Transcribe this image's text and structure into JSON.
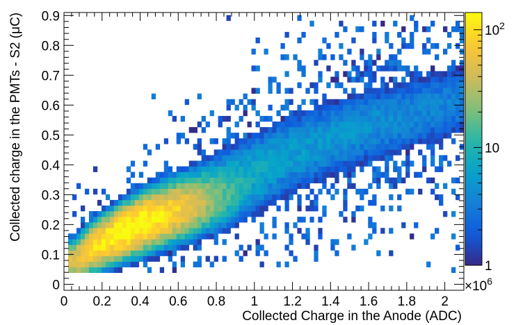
{
  "chart_data": {
    "type": "heatmap",
    "title": "",
    "xlabel": "Collected Charge in the Anode (ADC)",
    "ylabel": "Collected charge in the PMTs - S2 (μC)",
    "x_multiplier_label": "×10",
    "x_multiplier_exponent": "6",
    "xlim": [
      0,
      2.1
    ],
    "ylim": [
      -0.02,
      0.91
    ],
    "x_ticks": [
      0,
      0.2,
      0.4,
      0.6,
      0.8,
      1.0,
      1.2,
      1.4,
      1.6,
      1.8,
      2.0
    ],
    "x_tick_labels": [
      "0",
      "0.2",
      "0.4",
      "0.6",
      "0.8",
      "1",
      "1.2",
      "1.4",
      "1.6",
      "1.8",
      "2"
    ],
    "y_ticks": [
      0,
      0.1,
      0.2,
      0.3,
      0.4,
      0.5,
      0.6,
      0.7,
      0.8,
      0.9
    ],
    "y_tick_labels": [
      "0",
      "0.1",
      "0.2",
      "0.3",
      "0.4",
      "0.5",
      "0.6",
      "0.7",
      "0.8",
      "0.9"
    ],
    "z_scale": "log",
    "zlim": [
      1,
      140
    ],
    "z_tick_values": [
      1,
      10,
      100
    ],
    "z_tick_labels": {
      "one": "1",
      "ten": "10",
      "hundred_base": "10",
      "hundred_exponent": "2"
    },
    "colormap": [
      "#352a87",
      "#0f5cdd",
      "#1481d6",
      "#06a4ca",
      "#2eb7a4",
      "#87bf77",
      "#d1bb59",
      "#fec832",
      "#f9fb0e"
    ],
    "grid": false,
    "bins_x": 96,
    "bins_y": 48,
    "distribution": {
      "core_center": [
        0.38,
        0.19
      ],
      "ridge": [
        {
          "x": 0.05,
          "y": 0.06
        },
        {
          "x": 0.15,
          "y": 0.11
        },
        {
          "x": 0.3,
          "y": 0.17
        },
        {
          "x": 0.5,
          "y": 0.24
        },
        {
          "x": 0.8,
          "y": 0.33
        },
        {
          "x": 1.2,
          "y": 0.44
        },
        {
          "x": 1.6,
          "y": 0.53
        },
        {
          "x": 2.1,
          "y": 0.62
        }
      ],
      "peak_count": 140
    }
  }
}
